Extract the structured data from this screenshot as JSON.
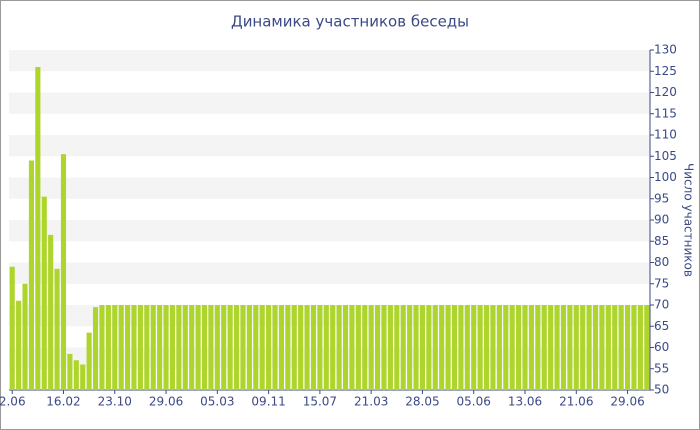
{
  "chart_data": {
    "type": "bar",
    "title": "Динамика участников беседы",
    "y_axis_label": "Число участников",
    "categories": [
      "2.06",
      null,
      null,
      null,
      null,
      null,
      null,
      null,
      "16.02",
      null,
      null,
      null,
      null,
      null,
      null,
      null,
      "23.10",
      null,
      null,
      null,
      null,
      null,
      null,
      null,
      "29.06",
      null,
      null,
      null,
      null,
      null,
      null,
      null,
      "05.03",
      null,
      null,
      null,
      null,
      null,
      null,
      null,
      "09.11",
      null,
      null,
      null,
      null,
      null,
      null,
      null,
      "15.07",
      null,
      null,
      null,
      null,
      null,
      null,
      null,
      "21.03",
      null,
      null,
      null,
      null,
      null,
      null,
      null,
      "28.05",
      null,
      null,
      null,
      null,
      null,
      null,
      null,
      "05.06",
      null,
      null,
      null,
      null,
      null,
      null,
      null,
      "13.06",
      null,
      null,
      null,
      null,
      null,
      null,
      null,
      "21.06",
      null,
      null,
      null,
      null,
      null,
      null,
      null,
      "29.06",
      null,
      null,
      null
    ],
    "values": [
      79,
      71,
      75,
      104,
      126,
      95.5,
      86.5,
      78.5,
      105.5,
      58.5,
      57,
      56,
      63.5,
      69.5,
      70,
      70,
      70,
      70,
      70,
      70,
      70,
      70,
      70,
      70,
      70,
      70,
      70,
      70,
      70,
      70,
      70,
      70,
      70,
      70,
      70,
      70,
      70,
      70,
      70,
      70,
      70,
      70,
      70,
      70,
      70,
      70,
      70,
      70,
      70,
      70,
      70,
      70,
      70,
      70,
      70,
      70,
      70,
      70,
      70,
      70,
      70,
      70,
      70,
      70,
      70,
      70,
      70,
      70,
      70,
      70,
      70,
      70,
      70,
      70,
      70,
      70,
      70,
      70,
      70,
      70,
      70,
      70,
      70,
      70,
      70,
      70,
      70,
      70,
      70,
      70,
      70,
      70,
      70,
      70,
      70,
      70,
      70,
      70,
      70,
      70
    ],
    "color": "#aed52c",
    "ylim": [
      50,
      130
    ],
    "yticks": [
      50,
      55,
      60,
      65,
      70,
      75,
      80,
      85,
      90,
      95,
      100,
      105,
      110,
      115,
      120,
      125,
      130
    ],
    "grid": true
  }
}
